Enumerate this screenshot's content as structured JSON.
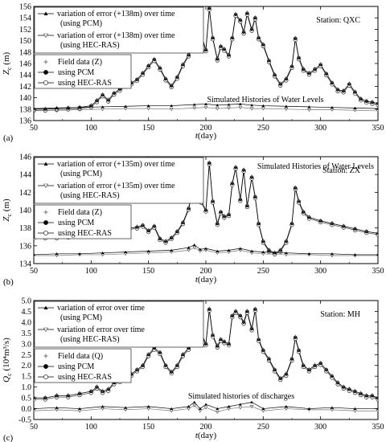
{
  "chart_data": [
    {
      "type": "line",
      "panel_label": "(a)",
      "station": "Station: QXC",
      "annotation": "Simulated Histories of Water Levels",
      "xlabel_italic": "t",
      "xlabel_rest": "(day)",
      "ylabel_italic": "Z",
      "ylabel_sub": "c",
      "ylabel_rest": " (m)",
      "xlim": [
        50,
        350
      ],
      "ylim": [
        136,
        156
      ],
      "xticks": [
        50,
        100,
        150,
        200,
        250,
        300,
        350
      ],
      "yticks": [
        136,
        138,
        140,
        142,
        144,
        146,
        148,
        150,
        152,
        154,
        156
      ],
      "legend_top": [
        {
          "marker": "triangle-up",
          "line1": "variation of error (+138m) over time",
          "line2": "(using PCM)"
        },
        {
          "marker": "triangle-down",
          "line1": "variation of error (+138m) over time",
          "line2": "(using HEC-RAS)"
        }
      ],
      "legend_bottom": [
        {
          "marker": "plus",
          "label": "Field data (Z)"
        },
        {
          "marker": "filled-circle",
          "label": "using PCM"
        },
        {
          "marker": "open-circle",
          "label": "using HEC-RAS"
        }
      ],
      "series_main": {
        "x": [
          50,
          60,
          70,
          80,
          90,
          100,
          105,
          110,
          115,
          120,
          125,
          130,
          135,
          140,
          145,
          150,
          155,
          160,
          165,
          170,
          175,
          180,
          185,
          190,
          193,
          196,
          200,
          203,
          206,
          210,
          213,
          216,
          220,
          223,
          226,
          230,
          233,
          236,
          240,
          243,
          246,
          250,
          255,
          260,
          265,
          270,
          275,
          278,
          281,
          285,
          290,
          295,
          300,
          305,
          310,
          315,
          320,
          325,
          330,
          335,
          340,
          345,
          350
        ],
        "y": [
          138,
          138,
          138.1,
          138.2,
          138.3,
          138.6,
          139.5,
          140.5,
          139.6,
          140.8,
          141.5,
          142.2,
          142.6,
          143.2,
          144.3,
          145.6,
          146.7,
          145.2,
          143.3,
          142.1,
          143.6,
          145.8,
          147.5,
          150.5,
          154.5,
          151,
          148.4,
          155.7,
          150.5,
          146.8,
          149,
          148.5,
          147.5,
          150.5,
          154.6,
          153.6,
          151.5,
          154.8,
          152,
          154,
          150.5,
          149.3,
          146.5,
          144,
          142.4,
          143.3,
          145.5,
          150.4,
          147,
          145,
          144.3,
          145,
          145.8,
          144.2,
          142.6,
          141.4,
          141.2,
          142.4,
          141,
          139.8,
          139.4,
          139.2,
          139
        ]
      },
      "series_error": {
        "x": [
          50,
          70,
          90,
          110,
          130,
          150,
          170,
          190,
          200,
          210,
          220,
          230,
          240,
          250,
          270,
          290,
          310,
          330,
          350
        ],
        "pcm": [
          138.1,
          138.2,
          138.3,
          138.4,
          138.5,
          138.6,
          138.6,
          138.8,
          138.9,
          138.7,
          138.8,
          138.9,
          138.7,
          138.6,
          138.5,
          138.4,
          138.3,
          138.2,
          138.1
        ],
        "hecras": [
          137.7,
          137.8,
          137.9,
          138.0,
          138.1,
          138.1,
          138.0,
          138.2,
          138.3,
          138.1,
          138.2,
          138.3,
          138.1,
          138.1,
          138.0,
          137.9,
          137.9,
          137.8,
          137.7
        ]
      }
    },
    {
      "type": "line",
      "panel_label": "(b)",
      "station": "Station: ZX",
      "annotation": "Simulated Histories of Water Levels",
      "xlabel_italic": "t",
      "xlabel_rest": "(day)",
      "ylabel_italic": "Z",
      "ylabel_sub": "c",
      "ylabel_rest": " (m)",
      "xlim": [
        50,
        350
      ],
      "ylim": [
        134,
        146
      ],
      "xticks": [
        50,
        100,
        150,
        200,
        250,
        300,
        350
      ],
      "yticks": [
        134,
        136,
        138,
        140,
        142,
        144,
        146
      ],
      "legend_top": [
        {
          "marker": "triangle-up",
          "line1": "variation of error (+135m) over time",
          "line2": "(using PCM)"
        },
        {
          "marker": "triangle-down",
          "line1": "variation of error (+135m) over time",
          "line2": "(using HEC-RAS)"
        }
      ],
      "legend_bottom": [
        {
          "marker": "plus",
          "label": "Field data (Z)"
        },
        {
          "marker": "filled-circle",
          "label": "using PCM"
        },
        {
          "marker": "open-circle",
          "label": "using HEC-RAS"
        }
      ],
      "series_main": {
        "x": [
          50,
          60,
          70,
          80,
          90,
          100,
          110,
          120,
          130,
          140,
          145,
          150,
          155,
          160,
          165,
          170,
          175,
          180,
          185,
          190,
          193,
          196,
          200,
          203,
          206,
          210,
          213,
          216,
          220,
          223,
          226,
          230,
          233,
          236,
          240,
          243,
          246,
          250,
          255,
          260,
          265,
          270,
          275,
          278,
          281,
          285,
          290,
          300,
          310,
          320,
          330,
          340,
          350
        ],
        "y": [
          137,
          137,
          137,
          137.1,
          137.2,
          137.5,
          137.6,
          137.8,
          137.9,
          138.1,
          138.3,
          137.7,
          138.2,
          136.8,
          136.5,
          136.9,
          137.6,
          138.6,
          140.2,
          143.5,
          145.5,
          141,
          140,
          145.3,
          141,
          138.5,
          139.8,
          139.3,
          139.5,
          143,
          144.8,
          141.2,
          144.5,
          140.5,
          143.7,
          141.5,
          138.5,
          136.5,
          135.5,
          135.2,
          135.5,
          136.5,
          138.5,
          142.5,
          141,
          139.8,
          139.2,
          138.8,
          138.5,
          138.2,
          137.9,
          137.6,
          137.4
        ]
      },
      "series_error": {
        "x": [
          50,
          70,
          90,
          110,
          130,
          150,
          170,
          185,
          190,
          195,
          200,
          210,
          220,
          230,
          240,
          250,
          270,
          290,
          310,
          330,
          350
        ],
        "pcm": [
          135.0,
          135.1,
          135.1,
          135.2,
          135.3,
          135.4,
          135.5,
          135.8,
          136.1,
          135.6,
          135.7,
          135.4,
          135.5,
          135.7,
          135.4,
          135.3,
          135.2,
          135.1,
          135.1,
          135.0,
          135.0
        ],
        "hecras": [
          134.9,
          134.9,
          135.0,
          135.0,
          135.1,
          135.2,
          135.3,
          135.5,
          135.8,
          135.4,
          135.5,
          135.2,
          135.3,
          135.5,
          135.2,
          135.1,
          135.0,
          135.0,
          134.9,
          134.9,
          134.9
        ]
      }
    },
    {
      "type": "line",
      "panel_label": "(c)",
      "station": "Station: MH",
      "annotation": "Simulated histories of discharges",
      "xlabel_italic": "t",
      "xlabel_rest": "(day)",
      "ylabel_italic": "Q",
      "ylabel_sub": "c",
      "ylabel_rest": " (10⁴m³/s)",
      "xlim": [
        50,
        350
      ],
      "ylim": [
        -0.5,
        5.0
      ],
      "xticks": [
        50,
        100,
        150,
        200,
        250,
        300,
        350
      ],
      "yticks": [
        -0.5,
        0.0,
        0.5,
        1.0,
        1.5,
        2.0,
        2.5,
        3.0,
        3.5,
        4.0,
        4.5,
        5.0
      ],
      "legend_top": [
        {
          "marker": "triangle-up",
          "line1": "variation of error  over time",
          "line2": "(using PCM)"
        },
        {
          "marker": "triangle-down",
          "line1": "variation of error over time",
          "line2": "(using HEC-RAS)"
        }
      ],
      "legend_bottom": [
        {
          "marker": "plus",
          "label": "Field data (Q)"
        },
        {
          "marker": "filled-circle",
          "label": "using PCM"
        },
        {
          "marker": "open-circle",
          "label": "using HEC-RAS"
        }
      ],
      "series_main": {
        "x": [
          50,
          60,
          70,
          80,
          90,
          100,
          105,
          110,
          115,
          120,
          125,
          130,
          135,
          140,
          145,
          150,
          155,
          160,
          165,
          170,
          175,
          180,
          185,
          190,
          193,
          196,
          200,
          203,
          206,
          210,
          213,
          216,
          220,
          223,
          226,
          230,
          233,
          236,
          240,
          243,
          246,
          250,
          255,
          260,
          265,
          270,
          275,
          278,
          281,
          285,
          290,
          295,
          300,
          305,
          310,
          315,
          320,
          325,
          330,
          335,
          340,
          345,
          350
        ],
        "y": [
          0.5,
          0.5,
          0.6,
          0.6,
          0.7,
          0.8,
          1.0,
          0.8,
          0.9,
          1.2,
          1.3,
          1.5,
          1.6,
          1.8,
          2.0,
          2.5,
          2.8,
          2.6,
          2.0,
          1.7,
          2.0,
          2.5,
          2.8,
          4.0,
          4.8,
          3.5,
          3.0,
          4.6,
          3.4,
          2.9,
          3.2,
          3.1,
          3.0,
          4.3,
          4.5,
          4.3,
          4.0,
          4.5,
          3.7,
          4.6,
          3.2,
          2.7,
          2.3,
          1.8,
          1.4,
          1.6,
          2.3,
          3.3,
          2.7,
          2.0,
          1.8,
          2.0,
          2.1,
          1.8,
          1.5,
          1.2,
          1.0,
          0.9,
          0.8,
          0.7,
          0.6,
          0.6,
          0.5
        ]
      },
      "series_error": {
        "x": [
          50,
          70,
          90,
          110,
          130,
          150,
          170,
          185,
          190,
          195,
          200,
          210,
          220,
          230,
          240,
          250,
          270,
          290,
          310,
          330,
          350
        ],
        "pcm": [
          0.0,
          0.05,
          0.0,
          0.1,
          0.05,
          0.1,
          0.0,
          0.1,
          0.3,
          0.0,
          0.2,
          0.0,
          0.1,
          0.2,
          0.3,
          0.0,
          0.1,
          0.0,
          0.05,
          0.0,
          0.0
        ],
        "hecras": [
          -0.1,
          -0.05,
          -0.1,
          0.0,
          -0.05,
          0.0,
          -0.1,
          0.0,
          0.15,
          -0.1,
          0.05,
          -0.15,
          0.0,
          0.05,
          0.1,
          -0.1,
          0.0,
          -0.05,
          -0.05,
          -0.1,
          -0.1
        ]
      }
    }
  ]
}
